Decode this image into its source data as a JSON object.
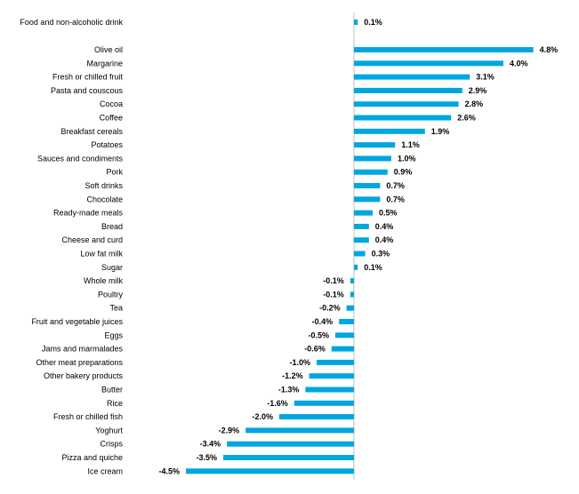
{
  "chart_data": {
    "type": "bar",
    "orientation": "horizontal",
    "title": "",
    "xlabel": "",
    "ylabel": "",
    "xlim": [
      -4.5,
      4.8
    ],
    "value_unit": "%",
    "bar_color": "#00a6e0",
    "axis_color": "#bfbfbf",
    "categories": [
      "Food and non-alcoholic drink",
      "Olive oil",
      "Margarine",
      "Fresh or chilled fruit",
      "Pasta and couscous",
      "Cocoa",
      "Coffee",
      "Breakfast cereals",
      "Potatoes",
      "Sauces and condiments",
      "Pork",
      "Soft drinks",
      "Chocolate",
      "Ready-made meals",
      "Bread",
      "Cheese and curd",
      "Low fat milk",
      "Sugar",
      "Whole milk",
      "Poultry",
      "Tea",
      "Fruit and vegetable juices",
      "Eggs",
      "Jams and marmalades",
      "Other meat preparations",
      "Other bakery products",
      "Butter",
      "Rice",
      "Fresh or chilled fish",
      "Yoghurt",
      "Crisps",
      "Pizza and quiche",
      "Ice cream"
    ],
    "values": [
      0.1,
      4.8,
      4.0,
      3.1,
      2.9,
      2.8,
      2.6,
      1.9,
      1.1,
      1.0,
      0.9,
      0.7,
      0.7,
      0.5,
      0.4,
      0.4,
      0.3,
      0.1,
      -0.1,
      -0.1,
      -0.2,
      -0.4,
      -0.5,
      -0.6,
      -1.0,
      -1.2,
      -1.3,
      -1.6,
      -2.0,
      -2.9,
      -3.4,
      -3.5,
      -4.5
    ],
    "value_labels": [
      "0.1%",
      "4.8%",
      "4.0%",
      "3.1%",
      "2.9%",
      "2.8%",
      "2.6%",
      "1.9%",
      "1.1%",
      "1.0%",
      "0.9%",
      "0.7%",
      "0.7%",
      "0.5%",
      "0.4%",
      "0.4%",
      "0.3%",
      "0.1%",
      "-0.1%",
      "-0.1%",
      "-0.2%",
      "-0.4%",
      "-0.5%",
      "-0.6%",
      "-1.0%",
      "-1.2%",
      "-1.3%",
      "-1.6%",
      "-2.0%",
      "-2.9%",
      "-3.4%",
      "-3.5%",
      "-4.5%"
    ]
  }
}
